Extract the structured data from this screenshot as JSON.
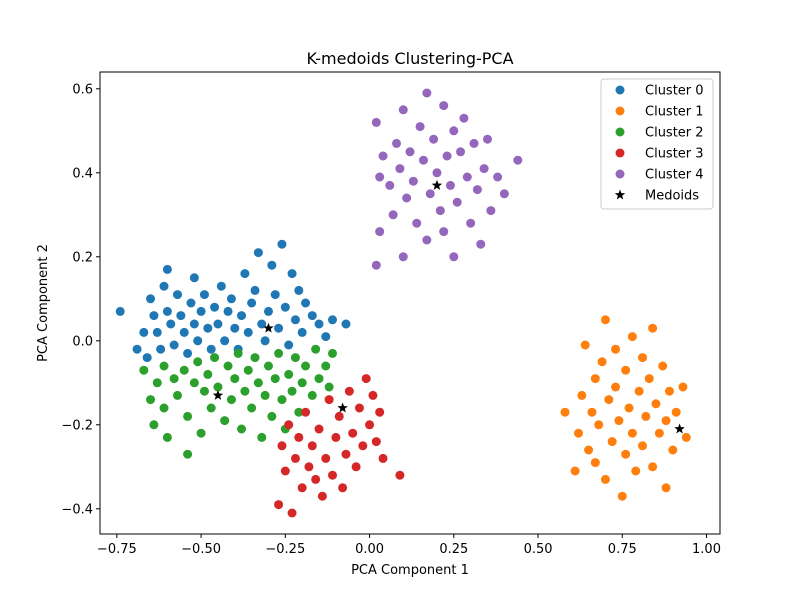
{
  "chart_data": {
    "type": "scatter",
    "title": "K-medoids Clustering-PCA",
    "xlabel": "PCA Component 1",
    "ylabel": "PCA Component 2",
    "xlim": [
      -0.8,
      1.04
    ],
    "ylim": [
      -0.46,
      0.64
    ],
    "xticks": [
      -0.75,
      -0.5,
      -0.25,
      0.0,
      0.25,
      0.5,
      0.75,
      1.0
    ],
    "xtick_labels": [
      "−0.75",
      "−0.50",
      "−0.25",
      "0.00",
      "0.25",
      "0.50",
      "0.75",
      "1.00"
    ],
    "yticks": [
      -0.4,
      -0.2,
      0.0,
      0.2,
      0.4,
      0.6
    ],
    "ytick_labels": [
      "−0.4",
      "−0.2",
      "0.0",
      "0.2",
      "0.4",
      "0.6"
    ],
    "grid": false,
    "legend_position": "top-right",
    "series": [
      {
        "name": "Cluster 0",
        "color": "#1f77b4",
        "marker": "circle",
        "points": [
          [
            -0.74,
            0.07
          ],
          [
            -0.69,
            -0.02
          ],
          [
            -0.67,
            0.02
          ],
          [
            -0.66,
            -0.04
          ],
          [
            -0.65,
            0.1
          ],
          [
            -0.64,
            0.06
          ],
          [
            -0.63,
            0.02
          ],
          [
            -0.62,
            -0.02
          ],
          [
            -0.61,
            0.13
          ],
          [
            -0.6,
            0.17
          ],
          [
            -0.6,
            0.07
          ],
          [
            -0.59,
            0.04
          ],
          [
            -0.58,
            -0.01
          ],
          [
            -0.57,
            0.11
          ],
          [
            -0.56,
            0.06
          ],
          [
            -0.55,
            0.02
          ],
          [
            -0.54,
            -0.03
          ],
          [
            -0.53,
            0.09
          ],
          [
            -0.52,
            0.15
          ],
          [
            -0.52,
            0.04
          ],
          [
            -0.51,
            0.0
          ],
          [
            -0.5,
            0.07
          ],
          [
            -0.49,
            0.11
          ],
          [
            -0.48,
            0.03
          ],
          [
            -0.47,
            -0.02
          ],
          [
            -0.46,
            0.08
          ],
          [
            -0.45,
            0.04
          ],
          [
            -0.44,
            0.13
          ],
          [
            -0.43,
            0.0
          ],
          [
            -0.42,
            0.07
          ],
          [
            -0.41,
            0.1
          ],
          [
            -0.4,
            0.03
          ],
          [
            -0.39,
            -0.02
          ],
          [
            -0.38,
            0.06
          ],
          [
            -0.37,
            0.16
          ],
          [
            -0.36,
            0.02
          ],
          [
            -0.35,
            0.09
          ],
          [
            -0.34,
            0.12
          ],
          [
            -0.33,
            0.21
          ],
          [
            -0.32,
            0.04
          ],
          [
            -0.31,
            0.0
          ],
          [
            -0.3,
            0.07
          ],
          [
            -0.29,
            0.18
          ],
          [
            -0.28,
            0.11
          ],
          [
            -0.27,
            0.03
          ],
          [
            -0.26,
            0.23
          ],
          [
            -0.25,
            0.08
          ],
          [
            -0.24,
            -0.01
          ],
          [
            -0.23,
            0.16
          ],
          [
            -0.22,
            0.05
          ],
          [
            -0.21,
            0.12
          ],
          [
            -0.2,
            0.02
          ],
          [
            -0.19,
            0.09
          ],
          [
            -0.17,
            0.06
          ],
          [
            -0.15,
            0.04
          ],
          [
            -0.13,
            0.01
          ],
          [
            -0.11,
            0.05
          ],
          [
            -0.07,
            0.04
          ]
        ]
      },
      {
        "name": "Cluster 1",
        "color": "#ff7f0e",
        "marker": "circle",
        "points": [
          [
            0.58,
            -0.17
          ],
          [
            0.61,
            -0.31
          ],
          [
            0.62,
            -0.22
          ],
          [
            0.63,
            -0.13
          ],
          [
            0.64,
            -0.01
          ],
          [
            0.65,
            -0.26
          ],
          [
            0.66,
            -0.17
          ],
          [
            0.67,
            -0.09
          ],
          [
            0.67,
            -0.29
          ],
          [
            0.68,
            -0.2
          ],
          [
            0.69,
            -0.05
          ],
          [
            0.7,
            -0.33
          ],
          [
            0.7,
            0.05
          ],
          [
            0.71,
            -0.14
          ],
          [
            0.72,
            -0.24
          ],
          [
            0.73,
            -0.11
          ],
          [
            0.73,
            -0.02
          ],
          [
            0.74,
            -0.19
          ],
          [
            0.75,
            -0.37
          ],
          [
            0.76,
            -0.27
          ],
          [
            0.76,
            -0.07
          ],
          [
            0.77,
            -0.16
          ],
          [
            0.78,
            0.01
          ],
          [
            0.78,
            -0.22
          ],
          [
            0.79,
            -0.31
          ],
          [
            0.8,
            -0.12
          ],
          [
            0.81,
            -0.04
          ],
          [
            0.81,
            -0.25
          ],
          [
            0.82,
            -0.18
          ],
          [
            0.83,
            -0.09
          ],
          [
            0.84,
            -0.3
          ],
          [
            0.84,
            0.03
          ],
          [
            0.85,
            -0.15
          ],
          [
            0.86,
            -0.22
          ],
          [
            0.87,
            -0.06
          ],
          [
            0.88,
            -0.35
          ],
          [
            0.88,
            -0.19
          ],
          [
            0.89,
            -0.12
          ],
          [
            0.9,
            -0.26
          ],
          [
            0.91,
            -0.17
          ],
          [
            0.93,
            -0.11
          ],
          [
            0.94,
            -0.23
          ]
        ]
      },
      {
        "name": "Cluster 2",
        "color": "#2ca02c",
        "marker": "circle",
        "points": [
          [
            -0.67,
            -0.07
          ],
          [
            -0.65,
            -0.14
          ],
          [
            -0.64,
            -0.2
          ],
          [
            -0.63,
            -0.1
          ],
          [
            -0.61,
            -0.06
          ],
          [
            -0.61,
            -0.16
          ],
          [
            -0.6,
            -0.23
          ],
          [
            -0.58,
            -0.09
          ],
          [
            -0.57,
            -0.13
          ],
          [
            -0.55,
            -0.07
          ],
          [
            -0.54,
            -0.18
          ],
          [
            -0.54,
            -0.27
          ],
          [
            -0.52,
            -0.1
          ],
          [
            -0.51,
            -0.05
          ],
          [
            -0.5,
            -0.22
          ],
          [
            -0.49,
            -0.12
          ],
          [
            -0.48,
            -0.08
          ],
          [
            -0.47,
            -0.16
          ],
          [
            -0.46,
            -0.04
          ],
          [
            -0.45,
            -0.11
          ],
          [
            -0.43,
            -0.19
          ],
          [
            -0.42,
            -0.06
          ],
          [
            -0.41,
            -0.14
          ],
          [
            -0.4,
            -0.09
          ],
          [
            -0.39,
            -0.03
          ],
          [
            -0.38,
            -0.21
          ],
          [
            -0.37,
            -0.12
          ],
          [
            -0.36,
            -0.07
          ],
          [
            -0.35,
            -0.16
          ],
          [
            -0.34,
            -0.04
          ],
          [
            -0.33,
            -0.1
          ],
          [
            -0.32,
            -0.23
          ],
          [
            -0.31,
            -0.13
          ],
          [
            -0.3,
            -0.06
          ],
          [
            -0.29,
            -0.18
          ],
          [
            -0.28,
            -0.09
          ],
          [
            -0.27,
            -0.03
          ],
          [
            -0.26,
            -0.14
          ],
          [
            -0.25,
            -0.21
          ],
          [
            -0.24,
            -0.08
          ],
          [
            -0.23,
            -0.12
          ],
          [
            -0.22,
            -0.04
          ],
          [
            -0.21,
            -0.17
          ],
          [
            -0.2,
            -0.1
          ],
          [
            -0.19,
            -0.06
          ],
          [
            -0.17,
            -0.13
          ],
          [
            -0.16,
            -0.02
          ],
          [
            -0.15,
            -0.09
          ],
          [
            -0.13,
            -0.06
          ],
          [
            -0.12,
            -0.11
          ],
          [
            -0.11,
            -0.03
          ]
        ]
      },
      {
        "name": "Cluster 3",
        "color": "#d62728",
        "marker": "circle",
        "points": [
          [
            -0.27,
            -0.39
          ],
          [
            -0.26,
            -0.25
          ],
          [
            -0.25,
            -0.31
          ],
          [
            -0.24,
            -0.2
          ],
          [
            -0.23,
            -0.41
          ],
          [
            -0.22,
            -0.28
          ],
          [
            -0.21,
            -0.23
          ],
          [
            -0.2,
            -0.35
          ],
          [
            -0.19,
            -0.17
          ],
          [
            -0.18,
            -0.3
          ],
          [
            -0.17,
            -0.25
          ],
          [
            -0.16,
            -0.33
          ],
          [
            -0.15,
            -0.21
          ],
          [
            -0.14,
            -0.37
          ],
          [
            -0.13,
            -0.28
          ],
          [
            -0.12,
            -0.14
          ],
          [
            -0.11,
            -0.32
          ],
          [
            -0.1,
            -0.23
          ],
          [
            -0.09,
            -0.18
          ],
          [
            -0.08,
            -0.35
          ],
          [
            -0.07,
            -0.27
          ],
          [
            -0.06,
            -0.12
          ],
          [
            -0.05,
            -0.22
          ],
          [
            -0.04,
            -0.3
          ],
          [
            -0.03,
            -0.16
          ],
          [
            -0.02,
            -0.25
          ],
          [
            -0.01,
            -0.09
          ],
          [
            0.0,
            -0.2
          ],
          [
            0.01,
            -0.13
          ],
          [
            0.02,
            -0.24
          ],
          [
            0.03,
            -0.17
          ],
          [
            0.04,
            -0.28
          ],
          [
            0.09,
            -0.32
          ]
        ]
      },
      {
        "name": "Cluster 4",
        "color": "#9467bd",
        "marker": "circle",
        "points": [
          [
            0.02,
            0.52
          ],
          [
            0.02,
            0.18
          ],
          [
            0.03,
            0.26
          ],
          [
            0.03,
            0.39
          ],
          [
            0.04,
            0.44
          ],
          [
            0.06,
            0.37
          ],
          [
            0.07,
            0.3
          ],
          [
            0.08,
            0.47
          ],
          [
            0.09,
            0.41
          ],
          [
            0.1,
            0.55
          ],
          [
            0.1,
            0.2
          ],
          [
            0.11,
            0.34
          ],
          [
            0.12,
            0.45
          ],
          [
            0.13,
            0.38
          ],
          [
            0.14,
            0.28
          ],
          [
            0.15,
            0.51
          ],
          [
            0.16,
            0.43
          ],
          [
            0.17,
            0.59
          ],
          [
            0.17,
            0.24
          ],
          [
            0.18,
            0.35
          ],
          [
            0.19,
            0.48
          ],
          [
            0.2,
            0.4
          ],
          [
            0.21,
            0.31
          ],
          [
            0.22,
            0.56
          ],
          [
            0.22,
            0.26
          ],
          [
            0.23,
            0.44
          ],
          [
            0.24,
            0.37
          ],
          [
            0.25,
            0.5
          ],
          [
            0.25,
            0.2
          ],
          [
            0.26,
            0.33
          ],
          [
            0.27,
            0.45
          ],
          [
            0.28,
            0.53
          ],
          [
            0.29,
            0.39
          ],
          [
            0.3,
            0.28
          ],
          [
            0.31,
            0.47
          ],
          [
            0.32,
            0.36
          ],
          [
            0.33,
            0.23
          ],
          [
            0.34,
            0.41
          ],
          [
            0.35,
            0.48
          ],
          [
            0.36,
            0.31
          ],
          [
            0.38,
            0.39
          ],
          [
            0.4,
            0.35
          ],
          [
            0.44,
            0.43
          ]
        ]
      },
      {
        "name": "Medoids",
        "color": "#000000",
        "marker": "star",
        "points": [
          [
            -0.3,
            0.03
          ],
          [
            0.92,
            -0.21
          ],
          [
            -0.45,
            -0.13
          ],
          [
            -0.08,
            -0.16
          ],
          [
            0.2,
            0.37
          ]
        ]
      }
    ]
  }
}
